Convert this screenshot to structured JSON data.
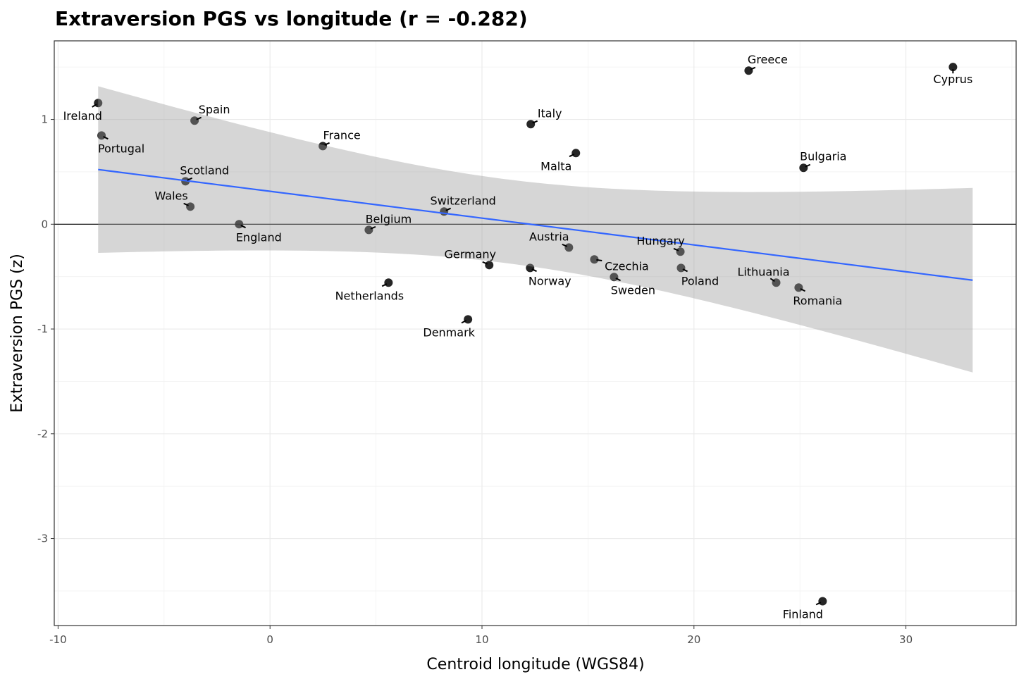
{
  "chart_data": {
    "type": "scatter",
    "title": "Extraversion PGS vs longitude (r = -0.282)",
    "xlabel": "Centroid longitude (WGS84)",
    "ylabel": "Extraversion PGS (z)",
    "xlim": [
      -10.18,
      35.2
    ],
    "ylim": [
      -3.83,
      1.75
    ],
    "xticks": [
      -10,
      0,
      10,
      20,
      30
    ],
    "yticks": [
      -3,
      -2,
      -1,
      0,
      1
    ],
    "xtick_labels": [
      "-10",
      "0",
      "10",
      "20",
      "30"
    ],
    "ytick_labels": [
      "-3",
      "-2",
      "-1",
      "0",
      "1"
    ],
    "grid": true,
    "hline": 0,
    "smooth": {
      "method": "lm",
      "se": true,
      "range": [
        -8.11,
        33.15
      ],
      "color": "#3366FF",
      "band_color": "#999999"
    },
    "point_color": "#000000",
    "points": [
      {
        "label": "Ireland",
        "x": -8.11,
        "y": 1.157
      },
      {
        "label": "Portugal",
        "x": -7.95,
        "y": 0.847
      },
      {
        "label": "Spain",
        "x": -3.56,
        "y": 0.989
      },
      {
        "label": "Scotland",
        "x": -3.99,
        "y": 0.41
      },
      {
        "label": "Wales",
        "x": -3.76,
        "y": 0.168
      },
      {
        "label": "England",
        "x": -1.46,
        "y": 0.0
      },
      {
        "label": "France",
        "x": 2.49,
        "y": 0.746
      },
      {
        "label": "Belgium",
        "x": 4.66,
        "y": -0.054
      },
      {
        "label": "Netherlands",
        "x": 5.59,
        "y": -0.558
      },
      {
        "label": "Switzerland",
        "x": 8.21,
        "y": 0.121
      },
      {
        "label": "Denmark",
        "x": 9.34,
        "y": -0.908
      },
      {
        "label": "Germany",
        "x": 10.34,
        "y": -0.39
      },
      {
        "label": "Italy",
        "x": 12.3,
        "y": 0.955
      },
      {
        "label": "Norway",
        "x": 12.27,
        "y": -0.417
      },
      {
        "label": "Malta",
        "x": 14.43,
        "y": 0.679
      },
      {
        "label": "Austria",
        "x": 14.1,
        "y": -0.222
      },
      {
        "label": "Czechia",
        "x": 15.3,
        "y": -0.336
      },
      {
        "label": "Sweden",
        "x": 16.23,
        "y": -0.504
      },
      {
        "label": "Hungary",
        "x": 19.36,
        "y": -0.262
      },
      {
        "label": "Poland",
        "x": 19.39,
        "y": -0.417
      },
      {
        "label": "Lithuania",
        "x": 23.88,
        "y": -0.558
      },
      {
        "label": "Romania",
        "x": 24.94,
        "y": -0.605
      },
      {
        "label": "Greece",
        "x": 22.58,
        "y": 1.466
      },
      {
        "label": "Bulgaria",
        "x": 25.17,
        "y": 0.538
      },
      {
        "label": "Cyprus",
        "x": 32.22,
        "y": 1.5
      },
      {
        "label": "Finland",
        "x": 26.07,
        "y": -3.598
      }
    ]
  }
}
